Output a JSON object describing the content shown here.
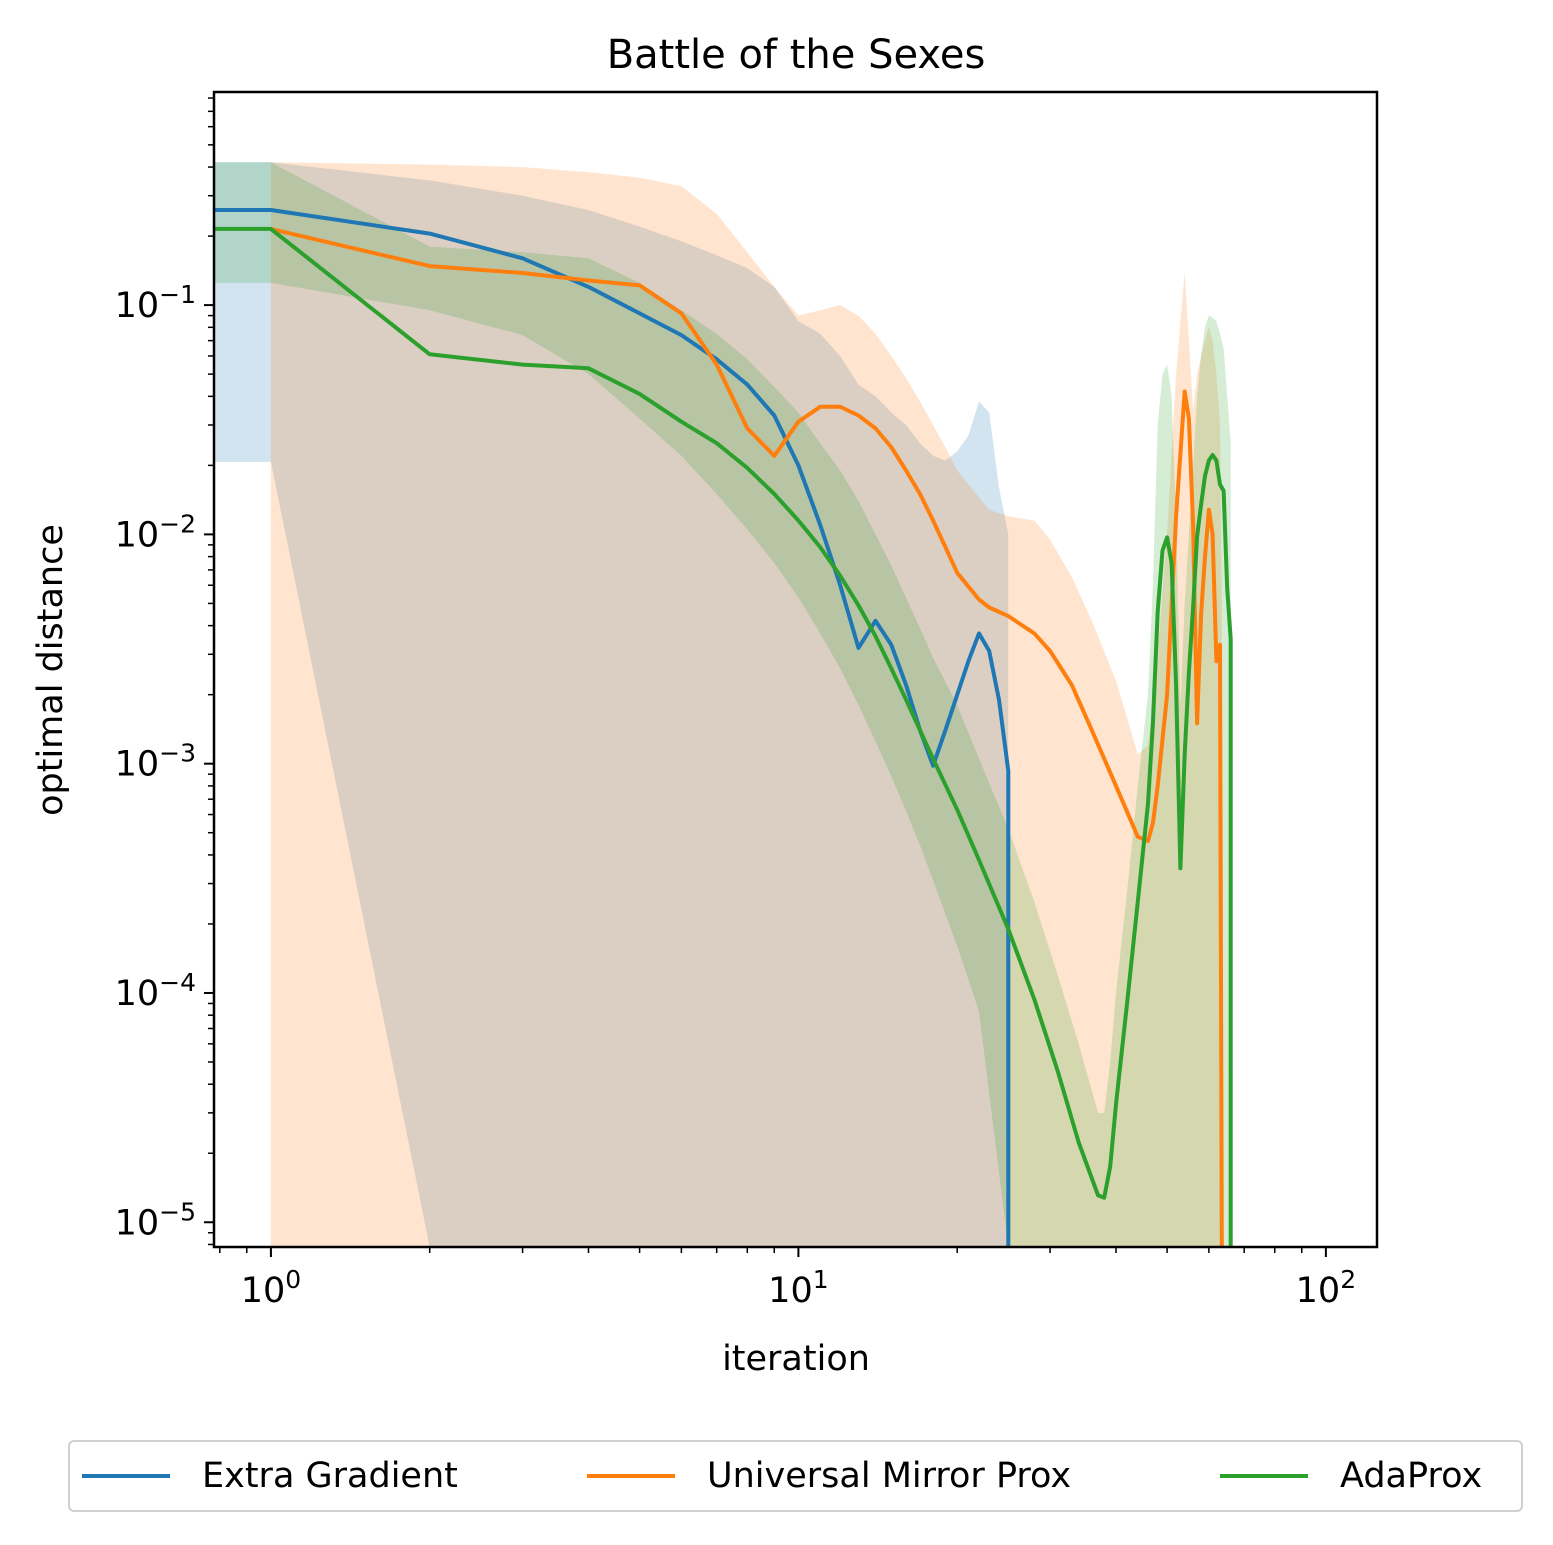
{
  "chart_data": {
    "type": "line",
    "title": "Battle of the Sexes",
    "xlabel": "iteration",
    "ylabel": "optimal distance",
    "xscale": "log",
    "yscale": "log",
    "xlim": [
      0.78,
      125
    ],
    "ylim": [
      7.8e-06,
      0.85
    ],
    "xticks": [
      {
        "value": 1,
        "base": "10",
        "exp": "0"
      },
      {
        "value": 10,
        "base": "10",
        "exp": "1"
      },
      {
        "value": 100,
        "base": "10",
        "exp": "2"
      }
    ],
    "yticks": [
      {
        "value": 0.1,
        "base": "10",
        "exp": "−1"
      },
      {
        "value": 0.01,
        "base": "10",
        "exp": "−2"
      },
      {
        "value": 0.001,
        "base": "10",
        "exp": "−3"
      },
      {
        "value": 0.0001,
        "base": "10",
        "exp": "−4"
      },
      {
        "value": 1e-05,
        "base": "10",
        "exp": "−5"
      }
    ],
    "legend_position": "below",
    "series": [
      {
        "name": "Extra Gradient",
        "color": "#1f77b4",
        "x": [
          0.78,
          1,
          2,
          3,
          4,
          5,
          6,
          7,
          8,
          9,
          10,
          11,
          12,
          13,
          14,
          15,
          16,
          17,
          18,
          19,
          20,
          21,
          22,
          23,
          24,
          25,
          25
        ],
        "y": [
          0.26,
          0.26,
          0.205,
          0.16,
          0.12,
          0.092,
          0.074,
          0.058,
          0.045,
          0.033,
          0.02,
          0.011,
          0.006,
          0.0032,
          0.0042,
          0.0033,
          0.0022,
          0.0014,
          0.00098,
          0.0014,
          0.002,
          0.0028,
          0.0037,
          0.0031,
          0.0019,
          0.00093,
          7.8e-06
        ],
        "band_upper": [
          0.42,
          0.42,
          0.35,
          0.3,
          0.26,
          0.22,
          0.19,
          0.165,
          0.145,
          0.12,
          0.085,
          0.075,
          0.06,
          0.045,
          0.04,
          0.034,
          0.03,
          0.025,
          0.022,
          0.021,
          0.023,
          0.027,
          0.038,
          0.034,
          0.016,
          0.01,
          0.01
        ],
        "band_lower": [
          0.0207,
          0.0207,
          7.8e-06,
          7.8e-06,
          7.8e-06,
          7.8e-06,
          7.8e-06,
          7.8e-06,
          7.8e-06,
          7.8e-06,
          7.8e-06,
          7.8e-06,
          7.8e-06,
          7.8e-06,
          7.8e-06,
          7.8e-06,
          7.8e-06,
          7.8e-06,
          7.8e-06,
          7.8e-06,
          7.8e-06,
          7.8e-06,
          7.8e-06,
          7.8e-06,
          7.8e-06,
          7.8e-06,
          7.8e-06
        ]
      },
      {
        "name": "Universal Mirror Prox",
        "color": "#ff7f0e",
        "x": [
          1,
          2,
          3,
          4,
          5,
          6,
          7,
          8,
          9,
          10,
          11,
          12,
          13,
          14,
          15,
          16,
          17,
          18,
          19,
          20,
          22,
          23,
          25,
          28,
          30,
          33,
          36,
          40,
          44,
          46,
          47,
          48,
          50,
          52,
          54,
          55,
          56,
          57,
          58,
          59,
          60,
          61,
          62,
          63,
          63.5
        ],
        "y": [
          0.215,
          0.148,
          0.138,
          0.128,
          0.122,
          0.092,
          0.055,
          0.029,
          0.022,
          0.031,
          0.036,
          0.036,
          0.033,
          0.029,
          0.024,
          0.019,
          0.015,
          0.0115,
          0.0088,
          0.0068,
          0.0052,
          0.0048,
          0.0044,
          0.0037,
          0.0031,
          0.0022,
          0.0014,
          0.0008,
          0.00048,
          0.00046,
          0.00055,
          0.0008,
          0.002,
          0.012,
          0.042,
          0.032,
          0.011,
          0.0015,
          0.0045,
          0.008,
          0.0128,
          0.01,
          0.0028,
          0.0033,
          7.8e-06
        ],
        "band_upper": [
          0.42,
          0.41,
          0.4,
          0.38,
          0.36,
          0.33,
          0.25,
          0.17,
          0.12,
          0.09,
          0.095,
          0.1,
          0.09,
          0.075,
          0.06,
          0.048,
          0.038,
          0.03,
          0.024,
          0.019,
          0.0145,
          0.0128,
          0.012,
          0.0115,
          0.0095,
          0.0065,
          0.0042,
          0.0023,
          0.0011,
          0.0012,
          0.0018,
          0.003,
          0.01,
          0.05,
          0.14,
          0.07,
          0.035,
          0.05,
          0.06,
          0.07,
          0.08,
          0.07,
          0.05,
          0.03,
          0.005
        ],
        "band_lower": [
          7.8e-06,
          7.8e-06,
          7.8e-06,
          7.8e-06,
          7.8e-06,
          7.8e-06,
          7.8e-06,
          7.8e-06,
          7.8e-06,
          7.8e-06,
          7.8e-06,
          7.8e-06,
          7.8e-06,
          7.8e-06,
          7.8e-06,
          7.8e-06,
          7.8e-06,
          7.8e-06,
          7.8e-06,
          7.8e-06,
          7.8e-06,
          7.8e-06,
          7.8e-06,
          7.8e-06,
          7.8e-06,
          7.8e-06,
          7.8e-06,
          7.8e-06,
          7.8e-06,
          7.8e-06,
          7.8e-06,
          7.8e-06,
          7.8e-06,
          7.8e-06,
          7.8e-06,
          7.8e-06,
          7.8e-06,
          7.8e-06,
          7.8e-06,
          7.8e-06,
          7.8e-06,
          7.8e-06,
          7.8e-06,
          7.8e-06,
          7.8e-06
        ]
      },
      {
        "name": "AdaProx",
        "color": "#2ca02c",
        "x": [
          0.78,
          1,
          2,
          3,
          4,
          5,
          6,
          7,
          8,
          9,
          10,
          11,
          12,
          13,
          14,
          15,
          16,
          17,
          18,
          20,
          22,
          25,
          28,
          31,
          34,
          37,
          38,
          39,
          40,
          42,
          44,
          46,
          47,
          48,
          49,
          50,
          51,
          52,
          53,
          54,
          55,
          56,
          57,
          58,
          59,
          60,
          61,
          62,
          63,
          64,
          65,
          66,
          66
        ],
        "y": [
          0.215,
          0.215,
          0.061,
          0.055,
          0.053,
          0.041,
          0.031,
          0.025,
          0.0195,
          0.015,
          0.0115,
          0.0088,
          0.0066,
          0.0049,
          0.0036,
          0.0026,
          0.0019,
          0.0014,
          0.00105,
          0.00063,
          0.00038,
          0.00019,
          9.38e-05,
          4.58e-05,
          2.23e-05,
          1.31e-05,
          1.28e-05,
          1.75e-05,
          3.27e-05,
          9.12e-05,
          0.00025,
          0.00067,
          0.0015,
          0.0046,
          0.0085,
          0.0097,
          0.0075,
          0.0022,
          0.00035,
          0.0011,
          0.0025,
          0.0048,
          0.0098,
          0.0135,
          0.018,
          0.021,
          0.0222,
          0.021,
          0.0165,
          0.0155,
          0.0058,
          0.0035,
          7.8e-06
        ],
        "band_upper": [
          0.42,
          0.42,
          0.18,
          0.17,
          0.16,
          0.125,
          0.095,
          0.075,
          0.058,
          0.044,
          0.034,
          0.025,
          0.019,
          0.014,
          0.01,
          0.0073,
          0.0053,
          0.0039,
          0.0029,
          0.0018,
          0.00105,
          0.00052,
          0.00025,
          0.00012,
          6e-05,
          3e-05,
          3e-05,
          5e-05,
          0.0001,
          0.00028,
          0.0008,
          0.002,
          0.006,
          0.03,
          0.05,
          0.055,
          0.04,
          0.012,
          0.0018,
          0.005,
          0.01,
          0.02,
          0.04,
          0.06,
          0.08,
          0.09,
          0.088,
          0.085,
          0.075,
          0.065,
          0.04,
          0.025,
          7.8e-06
        ],
        "band_lower": [
          0.125,
          0.125,
          0.095,
          0.074,
          0.05,
          0.032,
          0.022,
          0.015,
          0.0105,
          0.0075,
          0.0053,
          0.0037,
          0.0026,
          0.0018,
          0.00125,
          0.00088,
          0.00062,
          0.00044,
          0.00031,
          0.00016,
          8.3e-05,
          7.8e-06,
          7.8e-06,
          7.8e-06,
          7.8e-06,
          7.8e-06,
          7.8e-06,
          7.8e-06,
          7.8e-06,
          7.8e-06,
          7.8e-06,
          7.8e-06,
          7.8e-06,
          7.8e-06,
          7.8e-06,
          7.8e-06,
          7.8e-06,
          7.8e-06,
          7.8e-06,
          7.8e-06,
          7.8e-06,
          7.8e-06,
          7.8e-06,
          7.8e-06,
          7.8e-06,
          7.8e-06,
          7.8e-06,
          7.8e-06,
          7.8e-06,
          7.8e-06,
          7.8e-06,
          7.8e-06,
          7.8e-06
        ]
      }
    ]
  }
}
